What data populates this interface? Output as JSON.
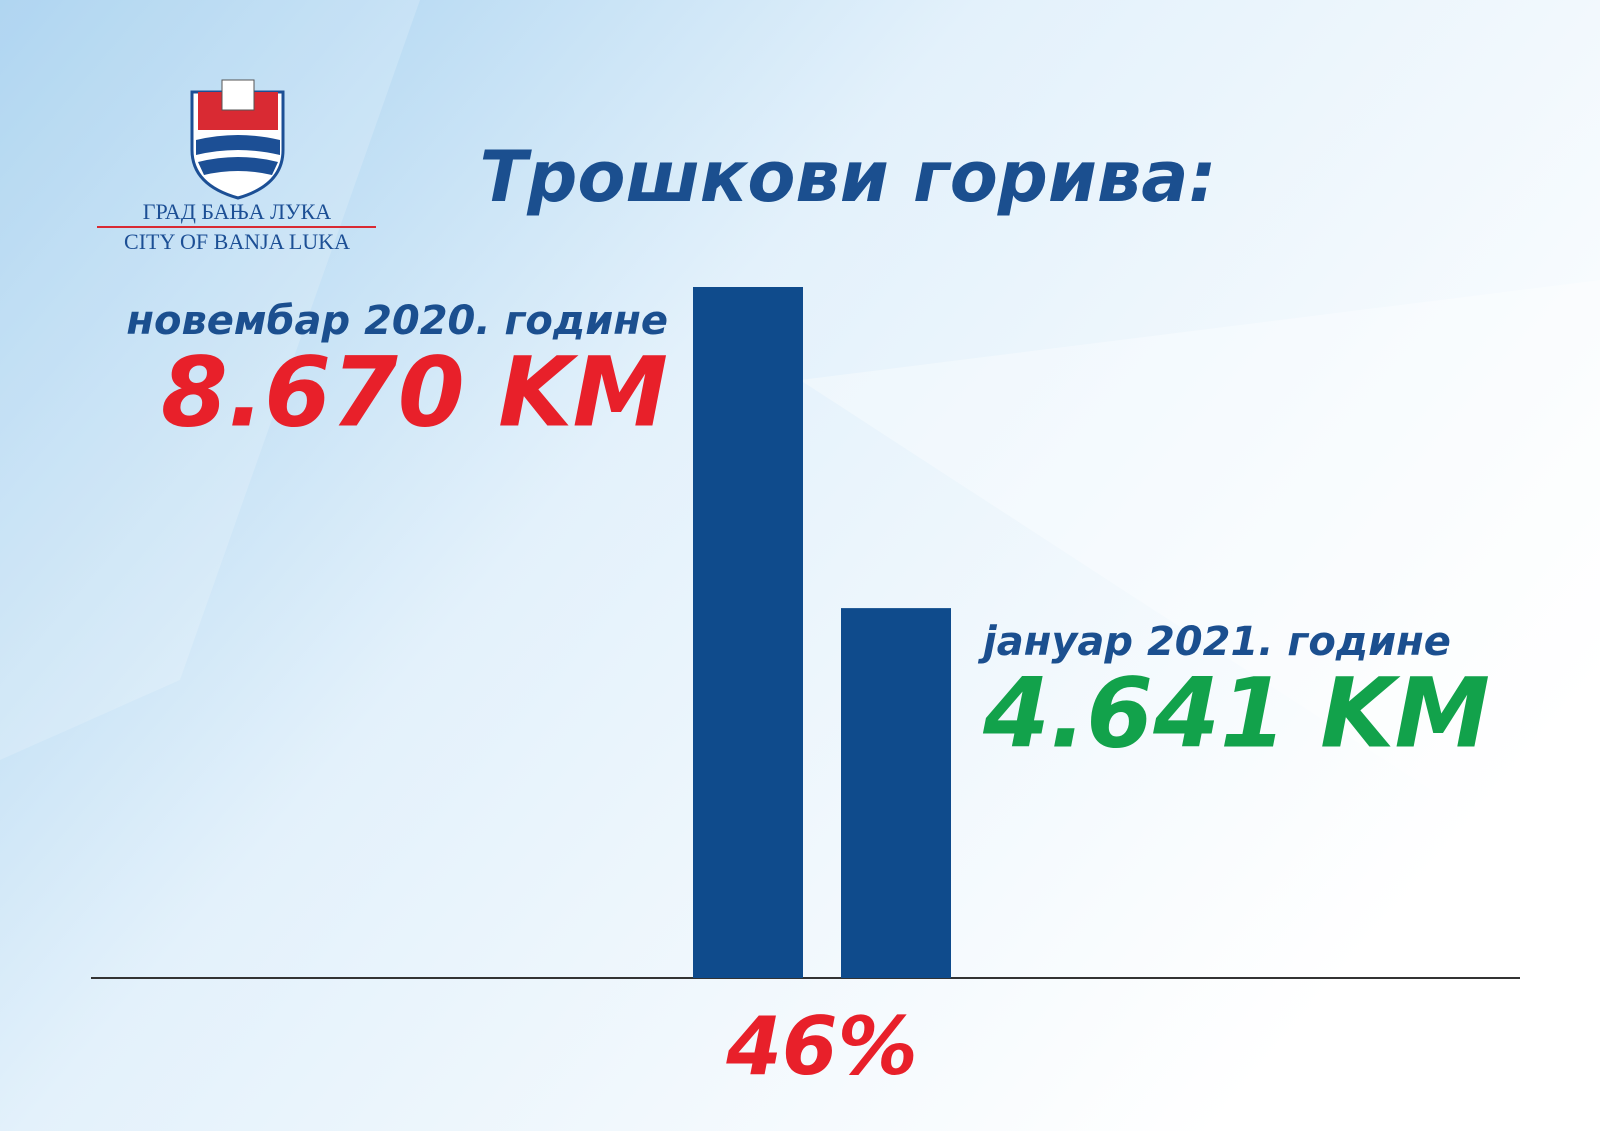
{
  "logo": {
    "line1": "ГРАД БАЊА ЛУКА",
    "line2": "CITY OF BANJA LUKA"
  },
  "chart_data": {
    "type": "bar",
    "title": "Трошкови горива:",
    "categories": [
      "новембар 2020. године",
      "јануар 2021. године"
    ],
    "values": [
      8670,
      4641
    ],
    "value_labels": [
      "8.670 KM",
      "4.641 KM"
    ],
    "color": "#0f4b8c",
    "value_label_colors": [
      "#e8202a",
      "#12a24b"
    ],
    "annotation": "46%",
    "annotation_color": "#e8202a"
  }
}
